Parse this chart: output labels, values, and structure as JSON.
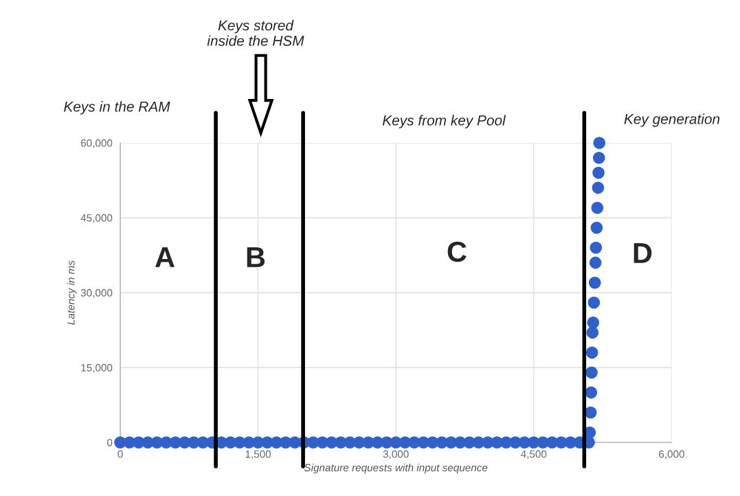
{
  "chart_data": {
    "type": "scatter",
    "xlabel": "Signature requests with input sequence",
    "ylabel": "Latency in ms",
    "xlim": [
      0,
      6000
    ],
    "xticks": [
      {
        "value": 0,
        "label": "0"
      },
      {
        "value": 1500,
        "label": "1,500"
      },
      {
        "value": 3000,
        "label": "3,000"
      },
      {
        "value": 4500,
        "label": "4,500"
      },
      {
        "value": 6000,
        "label": "6,000"
      }
    ],
    "ylim": [
      0,
      60000
    ],
    "yticks": [
      {
        "value": 0,
        "label": "0"
      },
      {
        "value": 15000,
        "label": "15,000"
      },
      {
        "value": 30000,
        "label": "30,000"
      },
      {
        "value": 45000,
        "label": "45,000"
      },
      {
        "value": 60000,
        "label": "60,000"
      }
    ],
    "grid": true,
    "marker": "circle",
    "series": [
      {
        "color": "#3060cc",
        "x": [
          0,
          100,
          200,
          300,
          400,
          500,
          600,
          700,
          800,
          900,
          1000,
          1100,
          1200,
          1300,
          1400,
          1500,
          1600,
          1700,
          1800,
          1900,
          2000,
          2100,
          2200,
          2300,
          2400,
          2500,
          2600,
          2700,
          2800,
          2900,
          3000,
          3100,
          3200,
          3300,
          3400,
          3500,
          3600,
          3700,
          3800,
          3900,
          4000,
          4100,
          4200,
          4300,
          4400,
          4500,
          4600,
          4700,
          4800,
          4900,
          5000,
          5100,
          5110,
          5120,
          5125,
          5130,
          5135,
          5140,
          5147,
          5155,
          5165,
          5172,
          5177,
          5185,
          5192,
          5200,
          5205,
          5210,
          5214
        ],
        "values": [
          0,
          0,
          0,
          0,
          0,
          0,
          0,
          0,
          0,
          0,
          0,
          0,
          0,
          0,
          0,
          0,
          0,
          0,
          0,
          0,
          0,
          0,
          0,
          0,
          0,
          0,
          0,
          0,
          0,
          0,
          0,
          0,
          0,
          0,
          0,
          0,
          0,
          0,
          0,
          0,
          0,
          0,
          0,
          0,
          0,
          0,
          0,
          0,
          0,
          0,
          0,
          0,
          2000,
          6000,
          10000,
          14000,
          18000,
          22000,
          24000,
          28000,
          32000,
          36000,
          39000,
          43000,
          47000,
          51000,
          54000,
          57000,
          60000
        ]
      }
    ],
    "ref_lines": [
      {
        "axis": "x",
        "value": 1040,
        "color": "#000000"
      },
      {
        "axis": "x",
        "value": 1990,
        "color": "#000000"
      },
      {
        "axis": "x",
        "value": 5050,
        "color": "#000000"
      }
    ],
    "annotations": [
      "A",
      "B",
      "C",
      "D",
      "Keys in the RAM",
      "Keys stored\ninside the HSM",
      "Keys from key Pool",
      "Key generation"
    ]
  }
}
